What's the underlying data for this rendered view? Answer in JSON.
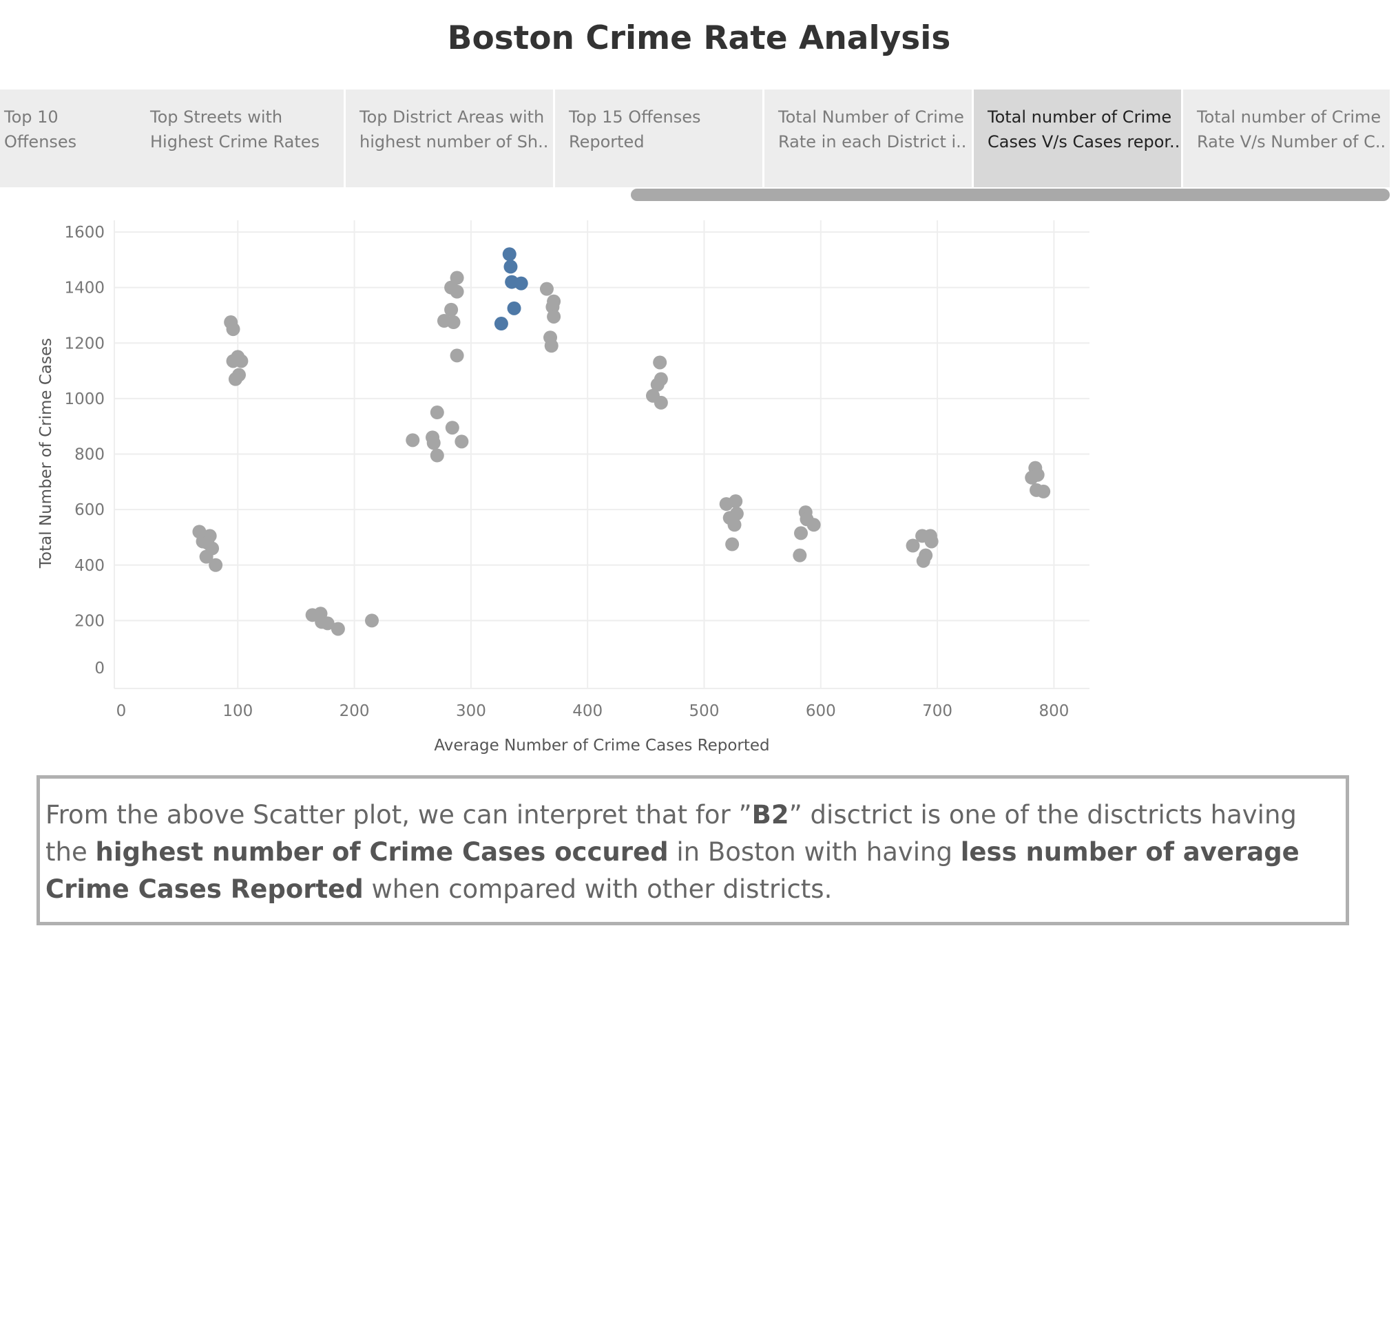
{
  "title": "Boston Crime Rate Analysis",
  "tabs": [
    {
      "line1": "Top 10",
      "line2": "Offenses",
      "active": false
    },
    {
      "line1": "Top Streets with",
      "line2": "Highest Crime Rates",
      "active": false
    },
    {
      "line1": "Top District Areas with",
      "line2": "highest number of Sh..",
      "active": false
    },
    {
      "line1": "Top 15 Offenses",
      "line2": "Reported",
      "active": false
    },
    {
      "line1": "Total Number of Crime",
      "line2": "Rate in each District i..",
      "active": false
    },
    {
      "line1": "Total number of Crime",
      "line2": "Cases V/s Cases repor..",
      "active": true
    },
    {
      "line1": "Total number of Crime",
      "line2": "Rate V/s Number of C..",
      "active": false
    }
  ],
  "colors": {
    "highlight": "#4e79a7",
    "default": "#a5a5a5",
    "grid": "#eeeeee"
  },
  "chart_data": {
    "type": "scatter",
    "xlabel": "Average Number of Crime Cases Reported",
    "ylabel": "Total Number of Crime Cases",
    "xlim": [
      0,
      800
    ],
    "ylim": [
      0,
      1600
    ],
    "x_ticks": [
      0,
      100,
      200,
      300,
      400,
      500,
      600,
      700,
      800
    ],
    "y_ticks": [
      0,
      200,
      400,
      600,
      800,
      1000,
      1200,
      1400,
      1600
    ],
    "grid": true,
    "highlighted_series": "B2",
    "points": [
      {
        "x": 94,
        "y": 1275
      },
      {
        "x": 96,
        "y": 1250
      },
      {
        "x": 96,
        "y": 1135
      },
      {
        "x": 100,
        "y": 1150
      },
      {
        "x": 103,
        "y": 1135
      },
      {
        "x": 101,
        "y": 1085
      },
      {
        "x": 98,
        "y": 1070
      },
      {
        "x": 67,
        "y": 520
      },
      {
        "x": 70,
        "y": 485
      },
      {
        "x": 76,
        "y": 505
      },
      {
        "x": 74,
        "y": 480
      },
      {
        "x": 78,
        "y": 460
      },
      {
        "x": 73,
        "y": 430
      },
      {
        "x": 81,
        "y": 400
      },
      {
        "x": 164,
        "y": 220
      },
      {
        "x": 171,
        "y": 225
      },
      {
        "x": 172,
        "y": 195
      },
      {
        "x": 177,
        "y": 190
      },
      {
        "x": 186,
        "y": 170
      },
      {
        "x": 215,
        "y": 200
      },
      {
        "x": 250,
        "y": 850
      },
      {
        "x": 267,
        "y": 860
      },
      {
        "x": 271,
        "y": 950
      },
      {
        "x": 268,
        "y": 840
      },
      {
        "x": 271,
        "y": 795
      },
      {
        "x": 284,
        "y": 895
      },
      {
        "x": 292,
        "y": 845
      },
      {
        "x": 277,
        "y": 1280
      },
      {
        "x": 283,
        "y": 1320
      },
      {
        "x": 285,
        "y": 1275
      },
      {
        "x": 288,
        "y": 1155
      },
      {
        "x": 283,
        "y": 1400
      },
      {
        "x": 288,
        "y": 1385
      },
      {
        "x": 288,
        "y": 1435
      },
      {
        "x": 333,
        "y": 1520,
        "highlight": true
      },
      {
        "x": 334,
        "y": 1475,
        "highlight": true
      },
      {
        "x": 335,
        "y": 1420,
        "highlight": true
      },
      {
        "x": 343,
        "y": 1415,
        "highlight": true
      },
      {
        "x": 337,
        "y": 1325,
        "highlight": true
      },
      {
        "x": 326,
        "y": 1270,
        "highlight": true
      },
      {
        "x": 365,
        "y": 1395
      },
      {
        "x": 371,
        "y": 1350
      },
      {
        "x": 370,
        "y": 1330
      },
      {
        "x": 371,
        "y": 1295
      },
      {
        "x": 368,
        "y": 1220
      },
      {
        "x": 369,
        "y": 1190
      },
      {
        "x": 462,
        "y": 1130
      },
      {
        "x": 463,
        "y": 1070
      },
      {
        "x": 460,
        "y": 1050
      },
      {
        "x": 456,
        "y": 1010
      },
      {
        "x": 463,
        "y": 985
      },
      {
        "x": 519,
        "y": 620
      },
      {
        "x": 527,
        "y": 630
      },
      {
        "x": 522,
        "y": 570
      },
      {
        "x": 528,
        "y": 585
      },
      {
        "x": 526,
        "y": 545
      },
      {
        "x": 524,
        "y": 475
      },
      {
        "x": 583,
        "y": 515
      },
      {
        "x": 587,
        "y": 590
      },
      {
        "x": 588,
        "y": 565
      },
      {
        "x": 594,
        "y": 545
      },
      {
        "x": 582,
        "y": 435
      },
      {
        "x": 679,
        "y": 470
      },
      {
        "x": 687,
        "y": 505
      },
      {
        "x": 694,
        "y": 505
      },
      {
        "x": 695,
        "y": 485
      },
      {
        "x": 690,
        "y": 435
      },
      {
        "x": 688,
        "y": 415
      },
      {
        "x": 784,
        "y": 750
      },
      {
        "x": 786,
        "y": 725
      },
      {
        "x": 781,
        "y": 715
      },
      {
        "x": 785,
        "y": 670
      },
      {
        "x": 791,
        "y": 665
      }
    ]
  },
  "note": {
    "p1": "From the above Scatter plot, we can interpret that for ”",
    "b1": "B2",
    "p2": "” disctrict is one of the disctricts having the ",
    "b2": "highest number of Crime Cases occured",
    "p3": " in Boston with having ",
    "b3": "less number of average Crime Cases Reported",
    "p4": " when compared with other districts."
  }
}
